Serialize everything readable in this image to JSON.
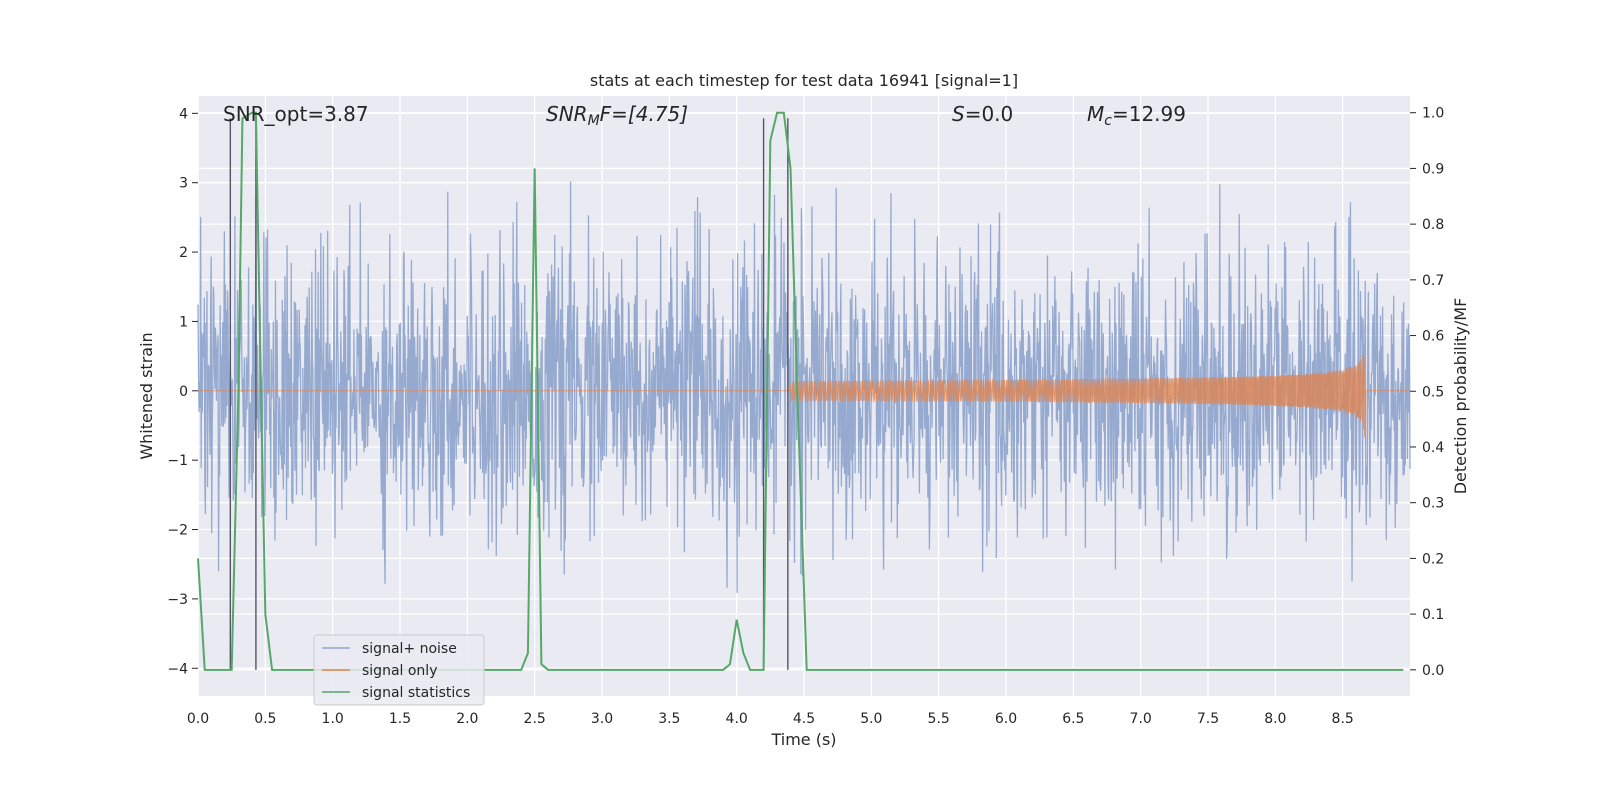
{
  "chart_data": {
    "type": "line",
    "title": "stats at each timestep for test data 16941 [signal=1]",
    "xlabel": "Time (s)",
    "ylabel": "Whitened strain",
    "ylabel_right": "Detection probability/MF",
    "xlim": [
      0.0,
      9.0
    ],
    "ylim": [
      -4.4,
      4.25
    ],
    "ylim_right": [
      -0.047,
      1.03
    ],
    "grid": true,
    "x_ticks": [
      "0.0",
      "0.5",
      "1.0",
      "1.5",
      "2.0",
      "2.5",
      "3.0",
      "3.5",
      "4.0",
      "4.5",
      "5.0",
      "5.5",
      "6.0",
      "6.5",
      "7.0",
      "7.5",
      "8.0",
      "8.5"
    ],
    "y_ticks": [
      "4",
      "3",
      "2",
      "1",
      "0",
      "−1",
      "−2",
      "−3",
      "−4"
    ],
    "y_right_ticks": [
      "1.0",
      "0.9",
      "0.8",
      "0.7",
      "0.6",
      "0.5",
      "0.4",
      "0.3",
      "0.2",
      "0.1",
      "0.0"
    ],
    "annotations": {
      "snr_opt": "SNR_opt=3.87",
      "snr_mf_sym": "SNR",
      "snr_mf_sub": "M",
      "snr_mf_rest": "F=[4.75]",
      "s_sym": "S",
      "s_rest": "=0.0",
      "mc_sym": "M",
      "mc_sub": "c",
      "mc_rest": "=12.99"
    },
    "legend": {
      "position": "lower-left",
      "entries": [
        "signal+ noise",
        "signal only",
        "signal statistics"
      ]
    },
    "series": [
      {
        "name": "signal+ noise",
        "color": "#8da3cc",
        "description": "whitened strain noise, amplitude about ±4",
        "noise_std": 1.0,
        "noise_peak": 4.0
      },
      {
        "name": "signal only",
        "color": "#dd8452",
        "chirp_start": 4.4,
        "chirp_end": 8.67,
        "chirp_peak_amplitude": 0.8
      },
      {
        "name": "signal statistics",
        "color": "#55a868",
        "x": [
          0.0,
          0.05,
          0.25,
          0.3,
          0.33,
          0.4,
          0.43,
          0.46,
          0.5,
          0.55,
          0.65,
          0.75,
          1.0,
          2.0,
          2.4,
          2.45,
          2.5,
          2.55,
          2.6,
          3.0,
          3.5,
          3.9,
          3.95,
          4.0,
          4.05,
          4.1,
          4.2,
          4.25,
          4.3,
          4.35,
          4.4,
          4.45,
          4.52,
          4.6,
          5.0,
          6.0,
          6.25,
          7.0,
          8.0,
          8.5,
          8.95
        ],
        "y": [
          0.2,
          0.0,
          0.0,
          0.5,
          0.99,
          1.0,
          1.0,
          0.6,
          0.1,
          0.0,
          0.0,
          0.0,
          0.0,
          0.0,
          0.0,
          0.03,
          0.9,
          0.01,
          0.0,
          0.0,
          0.0,
          0.0,
          0.01,
          0.09,
          0.03,
          0.0,
          0.0,
          0.95,
          1.0,
          1.0,
          0.9,
          0.5,
          0.0,
          0.0,
          0.0,
          0.0,
          0.0,
          0.0,
          0.0,
          0.0,
          0.0
        ]
      }
    ],
    "vertical_markers": [
      {
        "x": 0.24,
        "y_top": 0.99,
        "y_bottom": 0.0
      },
      {
        "x": 0.43,
        "y_top": 0.99,
        "y_bottom": 0.0
      },
      {
        "x": 4.2,
        "y_top": 0.99,
        "y_bottom": 0.0
      },
      {
        "x": 4.38,
        "y_top": 0.99,
        "y_bottom": 0.0
      }
    ]
  }
}
